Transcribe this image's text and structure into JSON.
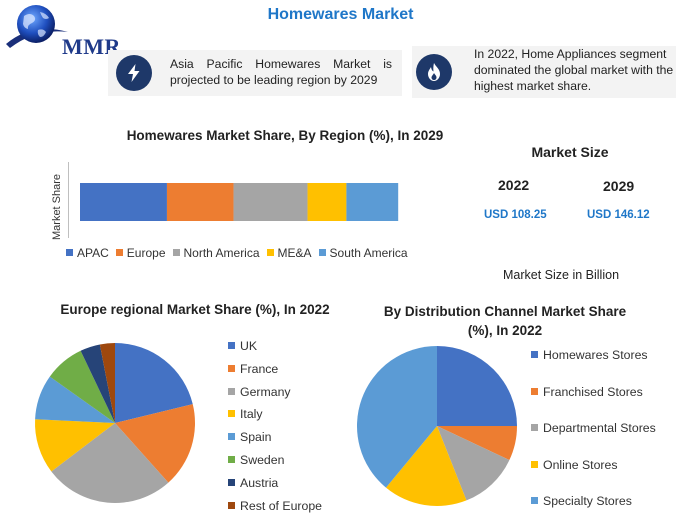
{
  "header": {
    "logo_text": "MMR",
    "title": "Homewares Market"
  },
  "highlights": [
    {
      "icon": "lightning-icon",
      "text": "Asia Pacific Homewares Market is projected to be leading region by 2029"
    },
    {
      "icon": "flame-icon",
      "text": "In 2022, Home Appliances segment dominated the global market with the highest market share."
    }
  ],
  "market_size": {
    "title": "Market Size",
    "years": [
      "2022",
      "2029"
    ],
    "values": [
      "USD 108.25",
      "USD 146.12"
    ],
    "note": "Market Size in Billion"
  },
  "colors": {
    "title": "#1f77c8",
    "badge": "#1e3869",
    "card": "#f3f3f3"
  },
  "chart_data": [
    {
      "type": "bar",
      "orientation": "horizontal-stacked",
      "title": "Homewares Market  Share, By Region (%), In 2029",
      "ylabel": "Market Share",
      "xlim": [
        0,
        100
      ],
      "legend_position": "bottom",
      "series": [
        {
          "name": "APAC",
          "value": 23.5,
          "color": "#4472c4"
        },
        {
          "name": "Europe",
          "value": 18,
          "color": "#ed7d31"
        },
        {
          "name": "North America",
          "value": 20,
          "color": "#a5a5a5"
        },
        {
          "name": "ME&A",
          "value": 10.5,
          "color": "#ffc000"
        },
        {
          "name": "South America",
          "value": 14,
          "color": "#5b9bd5"
        }
      ]
    },
    {
      "type": "pie",
      "title": "Europe regional Market Share (%), In 2022",
      "legend_position": "right",
      "slices": [
        {
          "label": "UK",
          "value": 21,
          "color": "#4472c4"
        },
        {
          "label": "France",
          "value": 17,
          "color": "#ed7d31"
        },
        {
          "label": "Germany",
          "value": 26,
          "color": "#a5a5a5"
        },
        {
          "label": "Italy",
          "value": 11,
          "color": "#ffc000"
        },
        {
          "label": "Spain",
          "value": 9,
          "color": "#5b9bd5"
        },
        {
          "label": "Sweden",
          "value": 8,
          "color": "#70ad47"
        },
        {
          "label": "Austria",
          "value": 4,
          "color": "#264478"
        },
        {
          "label": "Rest of Europe",
          "value": 3,
          "color": "#9e480e"
        }
      ]
    },
    {
      "type": "pie",
      "title": "By Distribution Channel Market Share (%), In 2022",
      "legend_position": "right",
      "slices": [
        {
          "label": "Homewares Stores",
          "value": 25,
          "color": "#4472c4"
        },
        {
          "label": "Franchised Stores",
          "value": 7,
          "color": "#ed7d31"
        },
        {
          "label": "Departmental Stores",
          "value": 12,
          "color": "#a5a5a5"
        },
        {
          "label": "Online Stores",
          "value": 17,
          "color": "#ffc000"
        },
        {
          "label": "Specialty Stores",
          "value": 39,
          "color": "#5b9bd5"
        }
      ]
    }
  ]
}
